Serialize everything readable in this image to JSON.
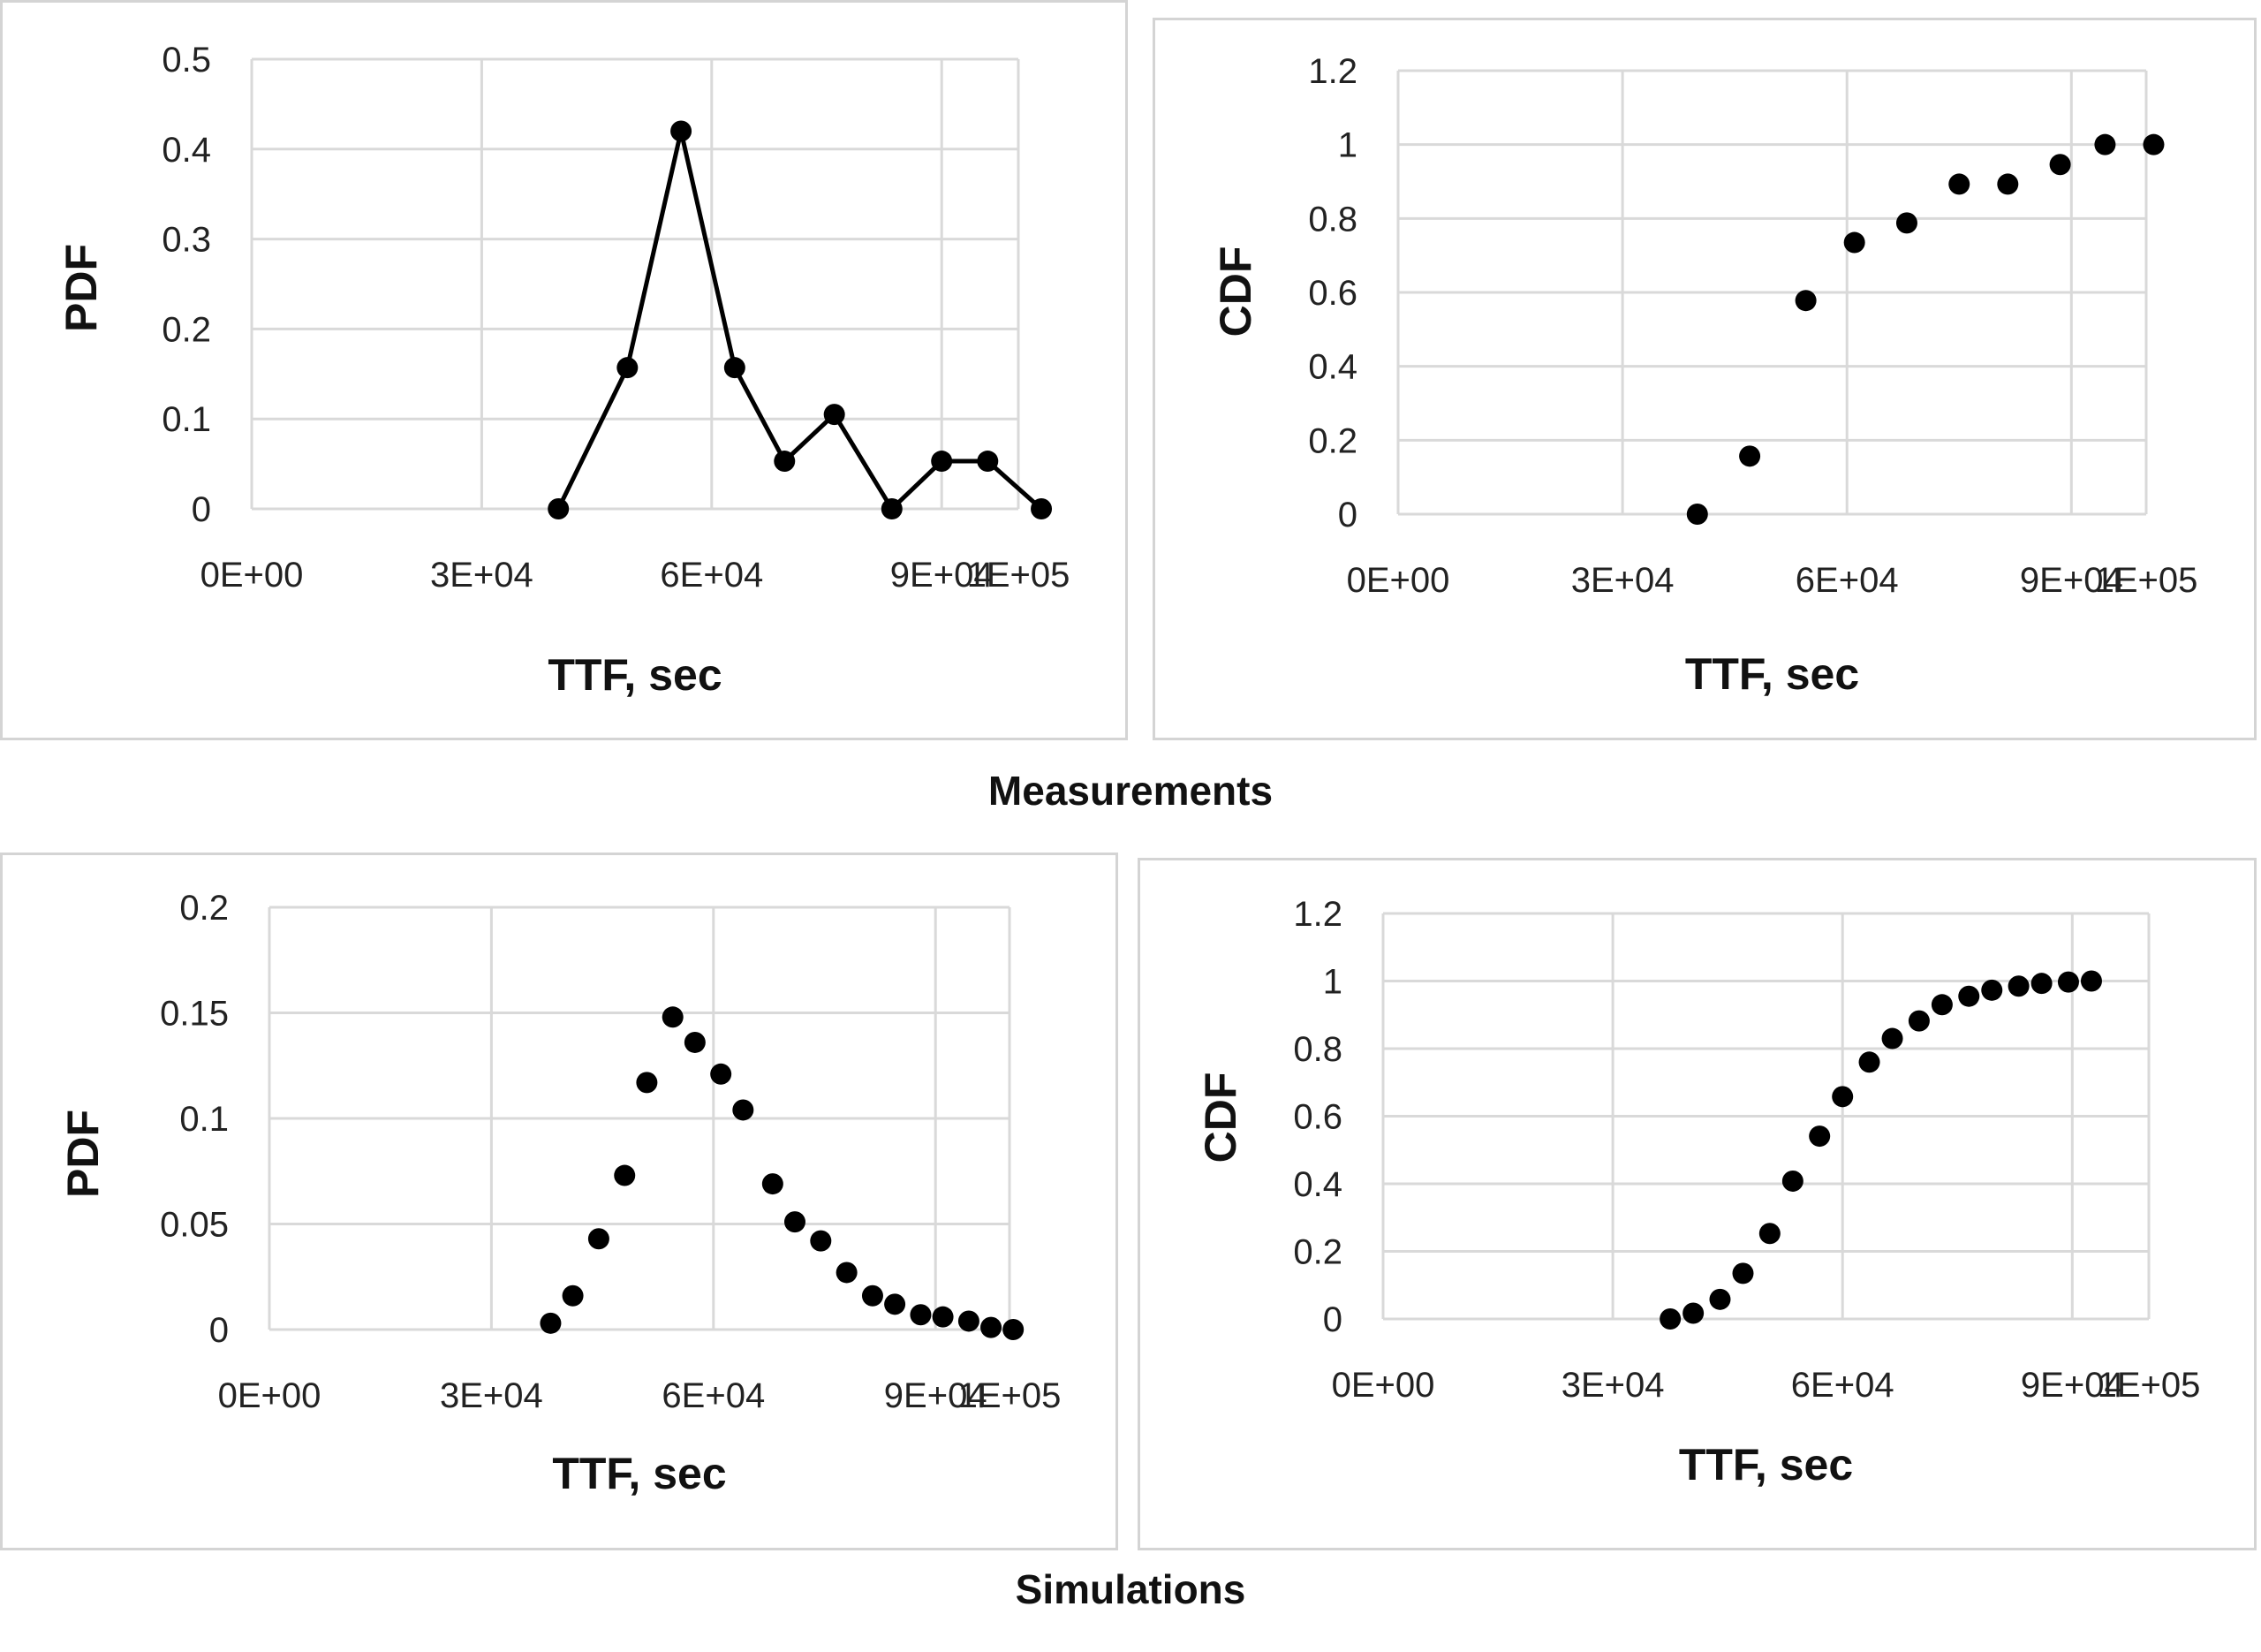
{
  "captions": {
    "measurements": "Measurements",
    "simulations": "Simulations"
  },
  "style": {
    "marker_color": "#000000",
    "grid_color": "#d9d9d9"
  },
  "chart_data": [
    {
      "id": "meas-pdf",
      "type": "line",
      "xlabel": "TTF, sec",
      "ylabel": "PDF",
      "xlim": [
        0,
        100000
      ],
      "ylim": [
        0,
        0.5
      ],
      "xticks": [
        0,
        30000,
        60000,
        90000,
        100000
      ],
      "xtick_labels": [
        "0E+00",
        "3E+04",
        "6E+04",
        "9E+04",
        "1E+05"
      ],
      "yticks": [
        0,
        0.1,
        0.2,
        0.3,
        0.4,
        0.5
      ],
      "ytick_labels": [
        "0",
        "0.1",
        "0.2",
        "0.3",
        "0.4",
        "0.5"
      ],
      "grid": true,
      "markers": true,
      "series": [
        {
          "x": [
            40000,
            49000,
            56000,
            63000,
            69500,
            76000,
            83500,
            90000,
            96000,
            103000
          ],
          "y": [
            0,
            0.157,
            0.42,
            0.157,
            0.053,
            0.105,
            0,
            0.053,
            0.053,
            0
          ]
        }
      ]
    },
    {
      "id": "meas-cdf",
      "type": "scatter",
      "xlabel": "TTF, sec",
      "ylabel": "CDF",
      "xlim": [
        0,
        100000
      ],
      "ylim": [
        0,
        1.2
      ],
      "xticks": [
        0,
        30000,
        60000,
        90000,
        100000
      ],
      "xtick_labels": [
        "0E+00",
        "3E+04",
        "6E+04",
        "9E+04",
        "1E+05"
      ],
      "yticks": [
        0,
        0.2,
        0.4,
        0.6,
        0.8,
        1.0,
        1.2
      ],
      "ytick_labels": [
        "0",
        "0.2",
        "0.4",
        "0.6",
        "0.8",
        "1",
        "1.2"
      ],
      "grid": true,
      "markers": true,
      "series": [
        {
          "x": [
            40000,
            47000,
            54500,
            61000,
            68000,
            75000,
            81500,
            88500,
            94500,
            101000
          ],
          "y": [
            0,
            0.157,
            0.578,
            0.735,
            0.788,
            0.893,
            0.893,
            0.946,
            1.0,
            1.0
          ]
        }
      ]
    },
    {
      "id": "sim-pdf",
      "type": "scatter",
      "xlabel": "TTF, sec",
      "ylabel": "PDF",
      "xlim": [
        0,
        100000
      ],
      "ylim": [
        0,
        0.2
      ],
      "xticks": [
        0,
        30000,
        60000,
        90000,
        100000
      ],
      "xtick_labels": [
        "0E+00",
        "3E+04",
        "6E+04",
        "9E+04",
        "1E+05"
      ],
      "yticks": [
        0,
        0.05,
        0.1,
        0.15,
        0.2
      ],
      "ytick_labels": [
        "0",
        "0.05",
        "0.1",
        "0.15",
        "0.2"
      ],
      "grid": true,
      "markers": true,
      "series": [
        {
          "x": [
            38000,
            41000,
            44500,
            48000,
            51000,
            54500,
            57500,
            61000,
            64000,
            68000,
            71000,
            74500,
            78000,
            81500,
            84500,
            88000,
            91000,
            94500,
            97500,
            100500
          ],
          "y": [
            0.003,
            0.016,
            0.043,
            0.073,
            0.117,
            0.148,
            0.136,
            0.121,
            0.104,
            0.069,
            0.051,
            0.042,
            0.027,
            0.016,
            0.012,
            0.007,
            0.006,
            0.004,
            0.001,
            0.0
          ]
        }
      ]
    },
    {
      "id": "sim-cdf",
      "type": "scatter",
      "xlabel": "TTF, sec",
      "ylabel": "CDF",
      "xlim": [
        0,
        100000
      ],
      "ylim": [
        0,
        1.2
      ],
      "xticks": [
        0,
        30000,
        60000,
        90000,
        100000
      ],
      "xtick_labels": [
        "0E+00",
        "3E+04",
        "6E+04",
        "9E+04",
        "1E+05"
      ],
      "yticks": [
        0,
        0.2,
        0.4,
        0.6,
        0.8,
        1.0,
        1.2
      ],
      "ytick_labels": [
        "0",
        "0.2",
        "0.4",
        "0.6",
        "0.8",
        "1",
        "1.2"
      ],
      "grid": true,
      "markers": true,
      "series": [
        {
          "x": [
            37500,
            40500,
            44000,
            47000,
            50500,
            53500,
            57000,
            60000,
            63500,
            66500,
            70000,
            73000,
            76500,
            79500,
            83000,
            86000,
            89500,
            92500
          ],
          "y": [
            0.0,
            0.017,
            0.058,
            0.135,
            0.253,
            0.408,
            0.541,
            0.658,
            0.76,
            0.83,
            0.882,
            0.93,
            0.955,
            0.973,
            0.985,
            0.993,
            0.997,
            1.0
          ]
        }
      ]
    }
  ]
}
